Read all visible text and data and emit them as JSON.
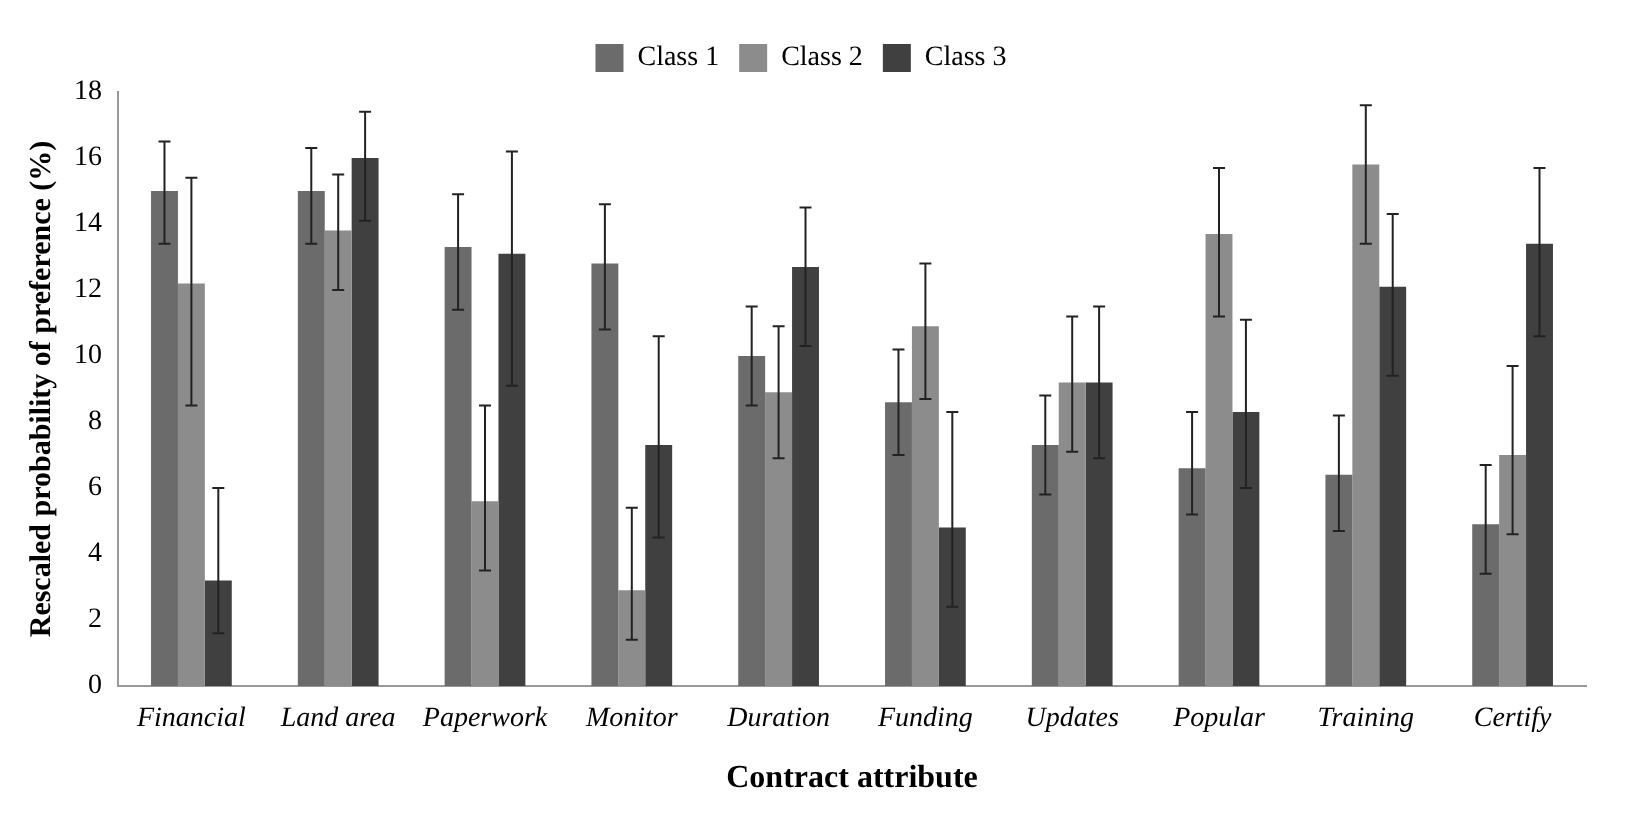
{
  "chart_data": {
    "type": "bar",
    "xlabel": "Contract attribute",
    "ylabel": "Rescaled probability of preference (%)",
    "categories": [
      "Financial",
      "Land area",
      "Paperwork",
      "Monitor",
      "Duration",
      "Funding",
      "Updates",
      "Popular",
      "Training",
      "Certify"
    ],
    "series": [
      {
        "name": "Class 1",
        "color": "#6b6b6b",
        "values": [
          15,
          15,
          13.3,
          12.8,
          10,
          8.6,
          7.3,
          6.6,
          6.4,
          4.9
        ],
        "errors": [
          [
            13.4,
            16.5
          ],
          [
            13.4,
            16.3
          ],
          [
            11.4,
            14.9
          ],
          [
            10.8,
            14.6
          ],
          [
            8.5,
            11.5
          ],
          [
            7,
            10.2
          ],
          [
            5.8,
            8.8
          ],
          [
            5.2,
            8.3
          ],
          [
            4.7,
            8.2
          ],
          [
            3.4,
            6.7
          ]
        ]
      },
      {
        "name": "Class 2",
        "color": "#8c8c8c",
        "values": [
          12.2,
          13.8,
          5.6,
          2.9,
          8.9,
          10.9,
          9.2,
          13.7,
          15.8,
          7
        ],
        "errors": [
          [
            8.5,
            15.4
          ],
          [
            12,
            15.5
          ],
          [
            3.5,
            8.5
          ],
          [
            1.4,
            5.4
          ],
          [
            6.9,
            10.9
          ],
          [
            8.7,
            12.8
          ],
          [
            7.1,
            11.2
          ],
          [
            11.2,
            15.7
          ],
          [
            13.4,
            17.6
          ],
          [
            4.6,
            9.7
          ]
        ]
      },
      {
        "name": "Class 3",
        "color": "#404040",
        "values": [
          3.2,
          16,
          13.1,
          7.3,
          12.7,
          4.8,
          9.2,
          8.3,
          12.1,
          13.4
        ],
        "errors": [
          [
            1.6,
            6
          ],
          [
            14.1,
            17.4
          ],
          [
            9.1,
            16.2
          ],
          [
            4.5,
            10.6
          ],
          [
            10.3,
            14.5
          ],
          [
            2.4,
            8.3
          ],
          [
            6.9,
            11.5
          ],
          [
            6,
            11.1
          ],
          [
            9.4,
            14.3
          ],
          [
            10.6,
            15.7
          ]
        ]
      }
    ],
    "ylim": [
      0,
      18
    ],
    "yticks": [
      0,
      2,
      4,
      6,
      8,
      10,
      12,
      14,
      16,
      18
    ],
    "grid": false,
    "legend": "top"
  }
}
